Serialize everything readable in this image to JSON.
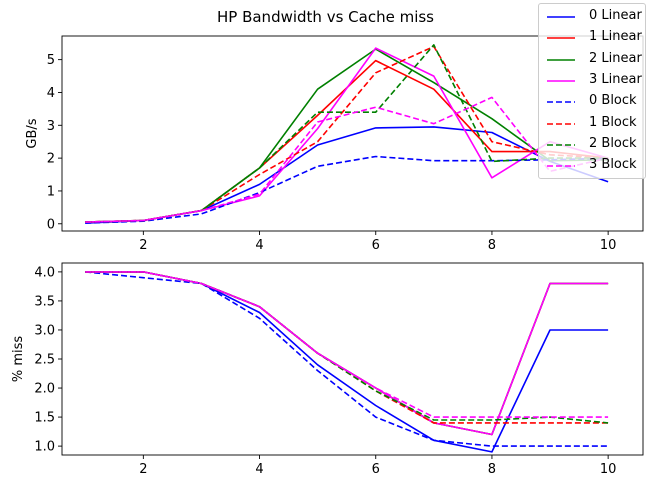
{
  "figure": {
    "title": "HP Bandwidth vs Cache miss"
  },
  "chart_data": [
    {
      "type": "line",
      "title": "",
      "xlabel": "",
      "ylabel": "GB/s",
      "xlim": [
        0.6,
        10.6
      ],
      "ylim": [
        -0.22,
        5.72
      ],
      "xticks": [
        2,
        4,
        6,
        8,
        10
      ],
      "yticks": [
        0,
        1,
        2,
        3,
        4,
        5
      ],
      "grid": false,
      "legend": "top-right",
      "x": [
        1,
        2,
        3,
        4,
        5,
        6,
        7,
        8,
        9,
        10
      ],
      "series": [
        {
          "name": "0 Linear",
          "color": "#0000ff",
          "style": "solid",
          "values": [
            0.02,
            0.1,
            0.4,
            1.2,
            2.4,
            2.92,
            2.95,
            2.78,
            1.9,
            1.28
          ]
        },
        {
          "name": "1 Linear",
          "color": "#ff0000",
          "style": "solid",
          "values": [
            0.05,
            0.1,
            0.4,
            1.7,
            3.3,
            4.97,
            4.1,
            2.2,
            2.2,
            2.0
          ]
        },
        {
          "name": "2 Linear",
          "color": "#008000",
          "style": "solid",
          "values": [
            0.05,
            0.1,
            0.4,
            1.7,
            4.1,
            5.32,
            4.3,
            3.2,
            1.92,
            1.95
          ]
        },
        {
          "name": "3 Linear",
          "color": "#ff00ff",
          "style": "solid",
          "values": [
            0.05,
            0.1,
            0.4,
            0.85,
            2.9,
            5.35,
            4.5,
            1.4,
            2.5,
            2.0
          ]
        },
        {
          "name": "0 Block",
          "color": "#0000ff",
          "style": "dashed",
          "values": [
            0.02,
            0.08,
            0.3,
            0.95,
            1.75,
            2.05,
            1.92,
            1.92,
            1.95,
            2.0
          ]
        },
        {
          "name": "1 Block",
          "color": "#ff0000",
          "style": "dashed",
          "values": [
            0.05,
            0.1,
            0.4,
            1.5,
            2.5,
            4.6,
            5.4,
            2.5,
            2.1,
            2.0
          ]
        },
        {
          "name": "2 Block",
          "color": "#008000",
          "style": "dashed",
          "values": [
            0.05,
            0.1,
            0.4,
            1.7,
            3.4,
            3.4,
            5.45,
            1.9,
            2.0,
            2.0
          ]
        },
        {
          "name": "3 Block",
          "color": "#ff00ff",
          "style": "dashed",
          "values": [
            0.05,
            0.1,
            0.4,
            0.9,
            3.1,
            3.55,
            3.05,
            3.85,
            1.6,
            2.0
          ]
        }
      ]
    },
    {
      "type": "line",
      "title": "",
      "xlabel": "",
      "ylabel": "% miss",
      "xlim": [
        0.6,
        10.6
      ],
      "ylim": [
        0.847,
        4.153
      ],
      "xticks": [
        2,
        4,
        6,
        8,
        10
      ],
      "yticks": [
        1.0,
        1.5,
        2.0,
        2.5,
        3.0,
        3.5,
        4.0
      ],
      "ytick_labels": [
        "1.0",
        "1.5",
        "2.0",
        "2.5",
        "3.0",
        "3.5",
        "4.0"
      ],
      "grid": false,
      "x": [
        1,
        2,
        3,
        4,
        5,
        6,
        7,
        8,
        9,
        10
      ],
      "series": [
        {
          "color": "#0000ff",
          "style": "solid",
          "values": [
            4.0,
            4.0,
            3.8,
            3.3,
            2.4,
            1.7,
            1.1,
            0.9,
            3.0,
            3.0
          ]
        },
        {
          "color": "#ff0000",
          "style": "solid",
          "values": [
            4.0,
            4.0,
            3.8,
            3.4,
            2.6,
            2.0,
            1.4,
            1.2,
            3.8,
            3.8
          ]
        },
        {
          "color": "#008000",
          "style": "solid",
          "values": [
            4.0,
            4.0,
            3.8,
            3.4,
            2.6,
            2.0,
            1.4,
            1.2,
            3.8,
            3.8
          ]
        },
        {
          "color": "#ff00ff",
          "style": "solid",
          "values": [
            4.0,
            4.0,
            3.8,
            3.4,
            2.6,
            2.0,
            1.4,
            1.2,
            3.8,
            3.8
          ]
        },
        {
          "color": "#0000ff",
          "style": "dashed",
          "values": [
            4.0,
            3.9,
            3.8,
            3.2,
            2.3,
            1.5,
            1.1,
            1.0,
            1.0,
            1.0
          ]
        },
        {
          "color": "#ff0000",
          "style": "dashed",
          "values": [
            4.0,
            4.0,
            3.8,
            3.4,
            2.6,
            1.95,
            1.4,
            1.4,
            1.4,
            1.4
          ]
        },
        {
          "color": "#008000",
          "style": "dashed",
          "values": [
            4.0,
            4.0,
            3.8,
            3.4,
            2.6,
            1.95,
            1.45,
            1.45,
            1.5,
            1.4
          ]
        },
        {
          "color": "#ff00ff",
          "style": "dashed",
          "values": [
            4.0,
            4.0,
            3.8,
            3.4,
            2.6,
            2.0,
            1.5,
            1.5,
            1.5,
            1.5
          ]
        }
      ]
    }
  ]
}
